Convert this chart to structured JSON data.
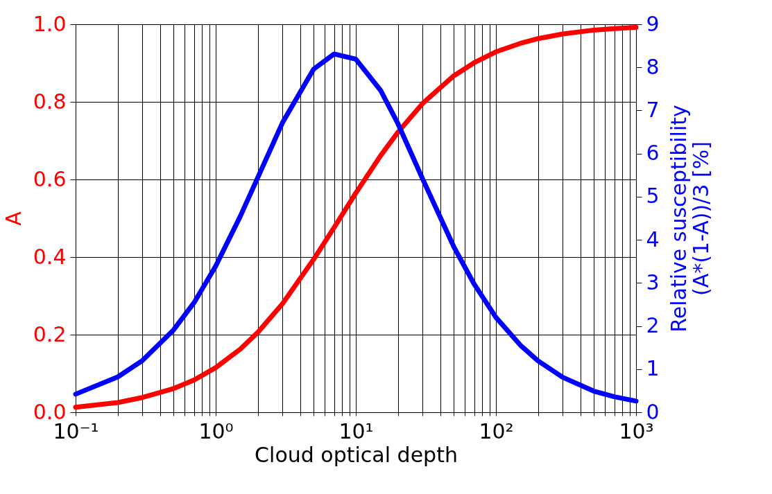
{
  "chart_data": {
    "type": "line",
    "xlabel": "Cloud optical depth",
    "ylabel": "A",
    "y2label": "Relative susceptibility\n(A*(1-A))/3 [%]",
    "log": "x",
    "grid": true,
    "line_style": "solid",
    "marker": "none",
    "x": [
      0.1,
      0.2,
      0.3,
      0.5,
      0.7,
      1,
      1.5,
      2,
      3,
      5,
      7,
      10,
      15,
      20,
      30,
      50,
      70,
      100,
      150,
      200,
      300,
      500,
      700,
      1000
    ],
    "series": [
      {
        "color": "#ff0000",
        "values": [
          0.013,
          0.025,
          0.038,
          0.061,
          0.083,
          0.115,
          0.163,
          0.206,
          0.28,
          0.394,
          0.476,
          0.565,
          0.661,
          0.722,
          0.796,
          0.867,
          0.901,
          0.929,
          0.951,
          0.963,
          0.975,
          0.985,
          0.989,
          0.992
        ]
      },
      {
        "color": "#0000ff",
        "axis": "y2",
        "values": [
          0.42,
          0.82,
          1.2,
          1.91,
          2.54,
          3.39,
          4.55,
          5.45,
          6.72,
          7.96,
          8.31,
          8.19,
          7.47,
          6.69,
          5.41,
          3.84,
          2.97,
          2.2,
          1.55,
          1.19,
          0.81,
          0.49,
          0.36,
          0.26
        ]
      }
    ],
    "xlim": [
      0.1,
      1000
    ],
    "xticks": [
      {
        "value": 0.1,
        "label": "10⁻¹"
      },
      {
        "value": 0.2,
        "label": null
      },
      {
        "value": 0.3,
        "label": null
      },
      {
        "value": 0.4,
        "label": null
      },
      {
        "value": 0.5,
        "label": null
      },
      {
        "value": 0.6,
        "label": null
      },
      {
        "value": 0.7,
        "label": null
      },
      {
        "value": 0.8,
        "label": null
      },
      {
        "value": 0.9,
        "label": null
      },
      {
        "value": 1,
        "label": "10⁰"
      },
      {
        "value": 2,
        "label": null
      },
      {
        "value": 3,
        "label": null
      },
      {
        "value": 4,
        "label": null
      },
      {
        "value": 5,
        "label": null
      },
      {
        "value": 6,
        "label": null
      },
      {
        "value": 7,
        "label": null
      },
      {
        "value": 8,
        "label": null
      },
      {
        "value": 9,
        "label": null
      },
      {
        "value": 10,
        "label": "10¹"
      },
      {
        "value": 20,
        "label": null
      },
      {
        "value": 30,
        "label": null
      },
      {
        "value": 40,
        "label": null
      },
      {
        "value": 50,
        "label": null
      },
      {
        "value": 60,
        "label": null
      },
      {
        "value": 70,
        "label": null
      },
      {
        "value": 80,
        "label": null
      },
      {
        "value": 90,
        "label": null
      },
      {
        "value": 100,
        "label": "10²"
      },
      {
        "value": 200,
        "label": null
      },
      {
        "value": 300,
        "label": null
      },
      {
        "value": 400,
        "label": null
      },
      {
        "value": 500,
        "label": null
      },
      {
        "value": 600,
        "label": null
      },
      {
        "value": 700,
        "label": null
      },
      {
        "value": 800,
        "label": null
      },
      {
        "value": 900,
        "label": null
      },
      {
        "value": 1000,
        "label": "10³"
      }
    ],
    "ylim": [
      0,
      1
    ],
    "yticks": [
      {
        "value": 0,
        "label": "0.0"
      },
      {
        "value": 0.2,
        "label": "0.2"
      },
      {
        "value": 0.4,
        "label": "0.4"
      },
      {
        "value": 0.6,
        "label": "0.6"
      },
      {
        "value": 0.8,
        "label": "0.8"
      },
      {
        "value": 1,
        "label": "1.0"
      }
    ],
    "y2lim": [
      0,
      9
    ],
    "y2ticks": [
      0,
      1,
      2,
      3,
      4,
      5,
      6,
      7,
      8,
      9
    ]
  }
}
